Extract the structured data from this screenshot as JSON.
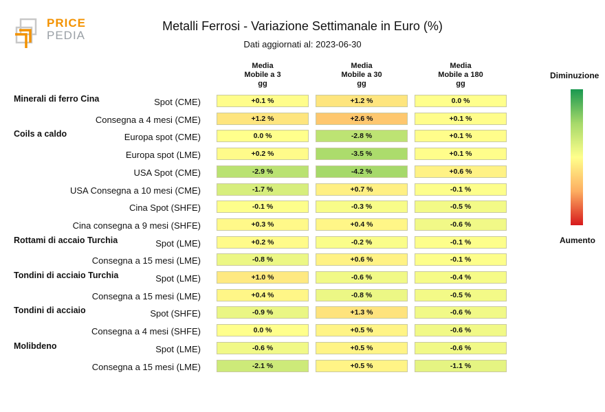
{
  "logo": {
    "line1": "PRICE",
    "line2": "PEDIA"
  },
  "chart_data": {
    "type": "table",
    "title": "Metalli Ferrosi - Variazione Settimanale in Euro (%)",
    "subtitle": "Dati aggiornati al: 2023-06-30",
    "columns": [
      {
        "line1": "Media",
        "line2": "Mobile a 3",
        "line3": "gg"
      },
      {
        "line1": "Media",
        "line2": "Mobile a 30",
        "line3": "gg"
      },
      {
        "line1": "Media",
        "line2": "Mobile a 180",
        "line3": "gg"
      }
    ],
    "legend": {
      "top": "Diminuzione",
      "bottom": "Aumento"
    },
    "colors": {
      "low": "#1a9850",
      "mid_low": "#a6d96a",
      "neutral": "#ffff8c",
      "mid_high": "#fdae61",
      "high": "#d7191c"
    },
    "rows": [
      {
        "group": "Minerali di ferro Cina",
        "label": "Spot (CME)",
        "values": [
          "+0.1 %",
          "+1.2 %",
          "0.0 %"
        ],
        "numbers": [
          0.1,
          1.2,
          0.0
        ]
      },
      {
        "group": "",
        "label": "Consegna a 4 mesi (CME)",
        "values": [
          "+1.2 %",
          "+2.6 %",
          "+0.1 %"
        ],
        "numbers": [
          1.2,
          2.6,
          0.1
        ]
      },
      {
        "group": "Coils a caldo",
        "label": "Europa spot (CME)",
        "values": [
          "0.0 %",
          "-2.8 %",
          "+0.1 %"
        ],
        "numbers": [
          0.0,
          -2.8,
          0.1
        ]
      },
      {
        "group": "",
        "label": "Europa spot (LME)",
        "values": [
          "+0.2 %",
          "-3.5 %",
          "+0.1 %"
        ],
        "numbers": [
          0.2,
          -3.5,
          0.1
        ]
      },
      {
        "group": "",
        "label": "USA Spot (CME)",
        "values": [
          "-2.9 %",
          "-4.2 %",
          "+0.6 %"
        ],
        "numbers": [
          -2.9,
          -4.2,
          0.6
        ]
      },
      {
        "group": "",
        "label": "USA Consegna a 10 mesi (CME)",
        "values": [
          "-1.7 %",
          "+0.7 %",
          "-0.1 %"
        ],
        "numbers": [
          -1.7,
          0.7,
          -0.1
        ]
      },
      {
        "group": "",
        "label": "Cina Spot (SHFE)",
        "values": [
          "-0.1 %",
          "-0.3 %",
          "-0.5 %"
        ],
        "numbers": [
          -0.1,
          -0.3,
          -0.5
        ]
      },
      {
        "group": "",
        "label": "Cina consegna a 9 mesi (SHFE)",
        "values": [
          "+0.3 %",
          "+0.4 %",
          "-0.6 %"
        ],
        "numbers": [
          0.3,
          0.4,
          -0.6
        ]
      },
      {
        "group": "Rottami di accaio Turchia",
        "label": "Spot (LME)",
        "values": [
          "+0.2 %",
          "-0.2 %",
          "-0.1 %"
        ],
        "numbers": [
          0.2,
          -0.2,
          -0.1
        ]
      },
      {
        "group": "",
        "label": "Consegna a 15 mesi (LME)",
        "values": [
          "-0.8 %",
          "+0.6 %",
          "-0.1 %"
        ],
        "numbers": [
          -0.8,
          0.6,
          -0.1
        ]
      },
      {
        "group": "Tondini di acciaio Turchia",
        "label": "Spot (LME)",
        "values": [
          "+1.0 %",
          "-0.6 %",
          "-0.4 %"
        ],
        "numbers": [
          1.0,
          -0.6,
          -0.4
        ]
      },
      {
        "group": "",
        "label": "Consegna a 15 mesi (LME)",
        "values": [
          "+0.4 %",
          "-0.8 %",
          "-0.5 %"
        ],
        "numbers": [
          0.4,
          -0.8,
          -0.5
        ]
      },
      {
        "group": "Tondini di acciaio",
        "label": "Spot (SHFE)",
        "values": [
          "-0.9 %",
          "+1.3 %",
          "-0.6 %"
        ],
        "numbers": [
          -0.9,
          1.3,
          -0.6
        ]
      },
      {
        "group": "",
        "label": "Consegna a 4 mesi (SHFE)",
        "values": [
          "0.0 %",
          "+0.5 %",
          "-0.6 %"
        ],
        "numbers": [
          0.0,
          0.5,
          -0.6
        ]
      },
      {
        "group": "Molibdeno",
        "label": "Spot (LME)",
        "values": [
          "-0.6 %",
          "+0.5 %",
          "-0.6 %"
        ],
        "numbers": [
          -0.6,
          0.5,
          -0.6
        ]
      },
      {
        "group": "",
        "label": "Consegna a 15 mesi (LME)",
        "values": [
          "-2.1 %",
          "+0.5 %",
          "-1.1 %"
        ],
        "numbers": [
          -2.1,
          0.5,
          -1.1
        ]
      }
    ]
  }
}
